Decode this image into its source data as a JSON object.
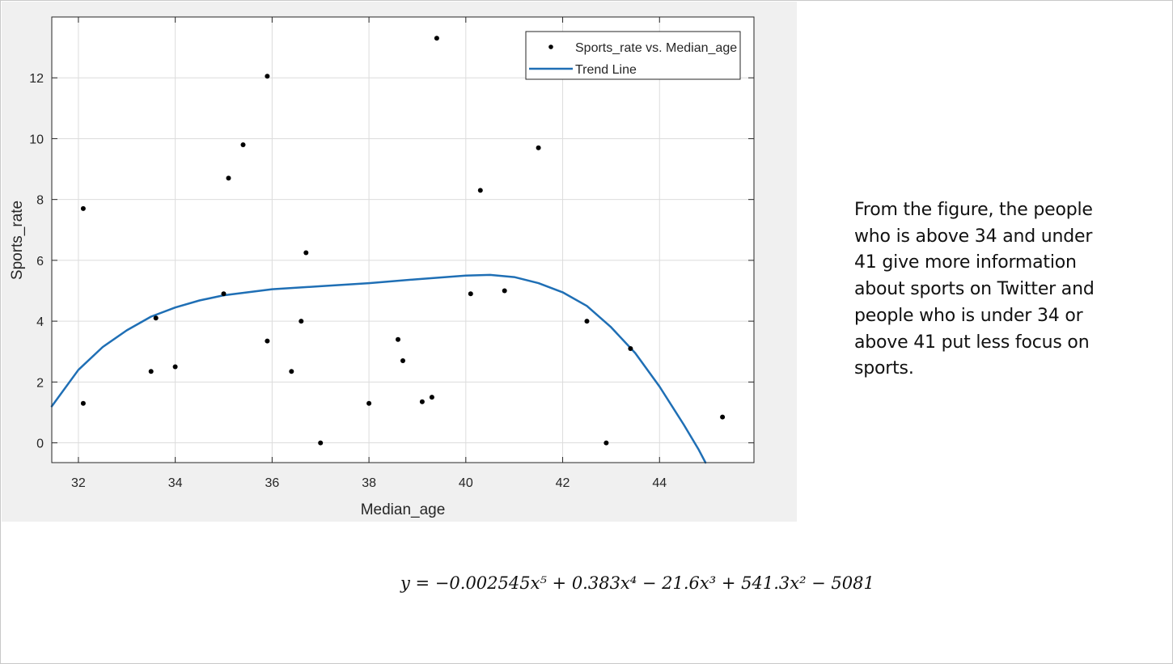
{
  "chart_data": {
    "type": "scatter",
    "xlabel": "Median_age",
    "ylabel": "Sports_rate",
    "xlim": [
      31.45,
      45.95
    ],
    "ylim": [
      -0.65,
      14.0
    ],
    "xticks": [
      32,
      34,
      36,
      38,
      40,
      42,
      44
    ],
    "yticks": [
      0,
      2,
      4,
      6,
      8,
      10,
      12
    ],
    "grid": true,
    "legend_position": "top-right",
    "series": [
      {
        "name": "Sports_rate vs. Median_age",
        "kind": "scatter",
        "color": "#000000",
        "points": [
          {
            "x": 32.1,
            "y": 7.7
          },
          {
            "x": 32.1,
            "y": 1.3
          },
          {
            "x": 33.5,
            "y": 2.35
          },
          {
            "x": 33.6,
            "y": 4.1
          },
          {
            "x": 34.0,
            "y": 2.5
          },
          {
            "x": 35.0,
            "y": 4.9
          },
          {
            "x": 35.1,
            "y": 8.7
          },
          {
            "x": 35.4,
            "y": 9.8
          },
          {
            "x": 35.9,
            "y": 12.05
          },
          {
            "x": 35.9,
            "y": 3.35
          },
          {
            "x": 36.4,
            "y": 2.35
          },
          {
            "x": 36.6,
            "y": 4.0
          },
          {
            "x": 36.7,
            "y": 6.25
          },
          {
            "x": 37.0,
            "y": 0.0
          },
          {
            "x": 38.0,
            "y": 1.3
          },
          {
            "x": 38.6,
            "y": 3.4
          },
          {
            "x": 38.7,
            "y": 2.7
          },
          {
            "x": 39.1,
            "y": 1.35
          },
          {
            "x": 39.3,
            "y": 1.5
          },
          {
            "x": 39.4,
            "y": 13.3
          },
          {
            "x": 40.1,
            "y": 4.9
          },
          {
            "x": 40.3,
            "y": 8.3
          },
          {
            "x": 40.8,
            "y": 5.0
          },
          {
            "x": 41.5,
            "y": 9.7
          },
          {
            "x": 42.5,
            "y": 4.0
          },
          {
            "x": 42.9,
            "y": 0.0
          },
          {
            "x": 43.4,
            "y": 3.1
          },
          {
            "x": 45.3,
            "y": 0.85
          }
        ]
      },
      {
        "name": "Trend Line",
        "kind": "line",
        "color": "#1f6fb5",
        "points": [
          {
            "x": 31.45,
            "y": 1.2
          },
          {
            "x": 32.0,
            "y": 2.4
          },
          {
            "x": 32.5,
            "y": 3.15
          },
          {
            "x": 33.0,
            "y": 3.7
          },
          {
            "x": 33.5,
            "y": 4.15
          },
          {
            "x": 34.0,
            "y": 4.45
          },
          {
            "x": 34.5,
            "y": 4.68
          },
          {
            "x": 35.0,
            "y": 4.85
          },
          {
            "x": 36.0,
            "y": 5.05
          },
          {
            "x": 37.0,
            "y": 5.15
          },
          {
            "x": 38.0,
            "y": 5.25
          },
          {
            "x": 39.0,
            "y": 5.38
          },
          {
            "x": 40.0,
            "y": 5.5
          },
          {
            "x": 40.5,
            "y": 5.52
          },
          {
            "x": 41.0,
            "y": 5.45
          },
          {
            "x": 41.5,
            "y": 5.25
          },
          {
            "x": 42.0,
            "y": 4.95
          },
          {
            "x": 42.5,
            "y": 4.5
          },
          {
            "x": 43.0,
            "y": 3.8
          },
          {
            "x": 43.5,
            "y": 2.95
          },
          {
            "x": 44.0,
            "y": 1.85
          },
          {
            "x": 44.5,
            "y": 0.6
          },
          {
            "x": 44.8,
            "y": -0.2
          },
          {
            "x": 44.95,
            "y": -0.65
          }
        ]
      }
    ]
  },
  "explanation": {
    "text": "From the figure, the people who is above 34 and under 41 give more information about sports on Twitter and people who is under 34 or above 41 put less focus on sports."
  },
  "equation": {
    "text": "y = −0.002545x⁵ + 0.383x⁴ − 21.6x³ + 541.3x² − 5081"
  }
}
